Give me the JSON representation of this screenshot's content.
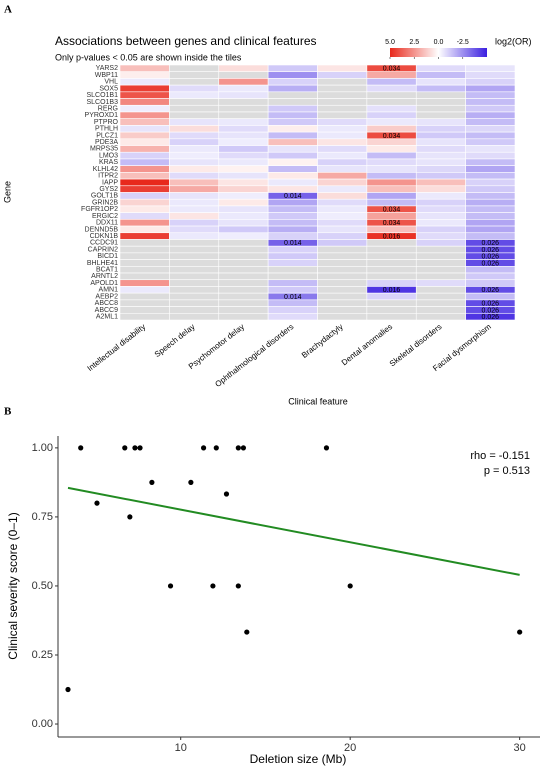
{
  "chart_data": [
    {
      "type": "heatmap",
      "panel": "A",
      "title": "Associations between genes and clinical features",
      "subtitle": "Only p-values < 0.05 are shown inside the tiles",
      "x_label": "Clinical feature",
      "y_label": "Gene",
      "features": [
        "Intellectual disability",
        "Speech delay",
        "Psychomotor delay",
        "Ophthalmological disorders",
        "Brachydactyly",
        "Dental anomalies",
        "Skeletal disorders",
        "Facial dysmorphism"
      ],
      "genes": [
        "YARS2",
        "WBP11",
        "VHL",
        "SOX5",
        "SLCO1B1",
        "SLCO1B3",
        "RERG",
        "PYROXD1",
        "PTPRO",
        "PTHLH",
        "PLCZ1",
        "PDE3A",
        "MRPS35",
        "LMO3",
        "KRAS",
        "KLHL42",
        "ITPR2",
        "IAPP",
        "GYS2",
        "GOLT1B",
        "GRIN2B",
        "FGFR1OP2",
        "ERGIC2",
        "DDX11",
        "DENND5B",
        "CDKN1B",
        "CCDC91",
        "CAPRIN2",
        "BICD1",
        "BHLHE41",
        "BCAT1",
        "ARNTL2",
        "APOLD1",
        "AMN1",
        "AEBP2",
        "ABCC8",
        "ABCC9",
        "A2ML1"
      ],
      "values": [
        [
          1.5,
          null,
          0.8,
          -1.2,
          0.6,
          4.2,
          -0.8,
          -0.6
        ],
        [
          0.4,
          null,
          null,
          -2.5,
          -1.0,
          2.0,
          -1.5,
          -0.8
        ],
        [
          -0.5,
          null,
          2.5,
          -1.0,
          null,
          -1.5,
          -0.6,
          -1.0
        ],
        [
          4.5,
          -0.8,
          -0.5,
          -1.8,
          null,
          -0.8,
          -1.5,
          -2.0
        ],
        [
          4.0,
          -0.5,
          -0.6,
          null,
          null,
          null,
          null,
          -1.5
        ],
        [
          2.8,
          null,
          null,
          null,
          null,
          null,
          null,
          -1.5
        ],
        [
          -0.4,
          null,
          null,
          -1.2,
          null,
          -0.7,
          null,
          -1.2
        ],
        [
          2.5,
          null,
          null,
          -1.5,
          null,
          -1.0,
          null,
          -1.8
        ],
        [
          1.5,
          -0.6,
          -0.5,
          -1.2,
          -0.8,
          -0.5,
          -0.6,
          -1.5
        ],
        [
          -0.6,
          0.8,
          -0.8,
          0.4,
          -0.5,
          1.2,
          -1.0,
          -0.9
        ],
        [
          1.2,
          -0.8,
          -0.6,
          -1.5,
          -0.5,
          4.2,
          -1.2,
          -1.5
        ],
        [
          0.5,
          -1.0,
          -0.4,
          1.5,
          0.6,
          1.0,
          -0.6,
          -1.2
        ],
        [
          1.8,
          -0.5,
          -1.2,
          -0.6,
          -0.8,
          0.5,
          -0.8,
          -0.6
        ],
        [
          -1.0,
          -0.4,
          -0.8,
          -1.2,
          -0.5,
          -1.5,
          -0.6,
          -0.8
        ],
        [
          -1.5,
          -0.6,
          -0.5,
          0.3,
          -1.0,
          -0.8,
          -0.6,
          -1.5
        ],
        [
          2.5,
          0.5,
          0.3,
          -1.5,
          -0.6,
          -0.6,
          -0.9,
          -2.0
        ],
        [
          1.5,
          -0.8,
          -0.6,
          0.5,
          2.0,
          -1.5,
          -1.2,
          -1.5
        ],
        [
          5.0,
          1.5,
          0.6,
          -0.5,
          1.0,
          2.5,
          1.5,
          -1.0
        ],
        [
          4.5,
          2.0,
          1.0,
          0.6,
          -0.5,
          1.5,
          0.8,
          -1.2
        ],
        [
          -1.0,
          -0.6,
          -0.4,
          -3.5,
          0.8,
          -2.0,
          -0.5,
          -1.5
        ],
        [
          1.0,
          -0.5,
          0.5,
          -2.0,
          -0.8,
          -1.5,
          -1.0,
          -1.8
        ],
        [
          0.5,
          -0.5,
          -0.6,
          -1.5,
          -0.5,
          4.0,
          -0.8,
          -1.5
        ],
        [
          -0.8,
          0.6,
          -0.5,
          -1.2,
          -0.4,
          2.2,
          -0.6,
          -1.5
        ],
        [
          2.5,
          -1.0,
          -0.6,
          -1.5,
          -0.8,
          4.0,
          -0.5,
          -2.0
        ],
        [
          0.5,
          -0.8,
          -1.2,
          -1.8,
          -0.6,
          1.5,
          -1.0,
          -2.0
        ],
        [
          4.5,
          -0.5,
          -0.4,
          -1.0,
          -1.0,
          4.8,
          -0.8,
          -1.5
        ],
        [
          null,
          null,
          null,
          -3.5,
          -1.2,
          null,
          -1.0,
          -4.0
        ],
        [
          null,
          null,
          null,
          -1.0,
          null,
          null,
          null,
          -4.0
        ],
        [
          null,
          null,
          null,
          -1.2,
          null,
          null,
          null,
          -4.0
        ],
        [
          null,
          null,
          null,
          -1.0,
          null,
          null,
          null,
          -4.0
        ],
        [
          null,
          null,
          null,
          null,
          null,
          null,
          null,
          -1.5
        ],
        [
          null,
          null,
          null,
          null,
          null,
          null,
          null,
          -1.2
        ],
        [
          2.5,
          null,
          null,
          -1.5,
          null,
          -1.0,
          -0.8,
          -1.2
        ],
        [
          -0.5,
          null,
          null,
          -1.2,
          null,
          -4.5,
          null,
          -4.0
        ],
        [
          null,
          null,
          null,
          -3.0,
          null,
          -1.0,
          null,
          -1.5
        ],
        [
          null,
          null,
          null,
          -1.5,
          null,
          null,
          null,
          -4.0
        ],
        [
          null,
          null,
          null,
          -1.0,
          null,
          null,
          null,
          -4.0
        ],
        [
          null,
          null,
          null,
          -0.8,
          null,
          null,
          null,
          -4.5
        ]
      ],
      "p_labels": [
        [
          null,
          null,
          null,
          null,
          null,
          "0.034",
          null,
          null
        ],
        [
          null,
          null,
          null,
          null,
          null,
          null,
          null,
          null
        ],
        [
          null,
          null,
          null,
          null,
          null,
          null,
          null,
          null
        ],
        [
          null,
          null,
          null,
          null,
          null,
          null,
          null,
          null
        ],
        [
          null,
          null,
          null,
          null,
          null,
          null,
          null,
          null
        ],
        [
          null,
          null,
          null,
          null,
          null,
          null,
          null,
          null
        ],
        [
          null,
          null,
          null,
          null,
          null,
          null,
          null,
          null
        ],
        [
          null,
          null,
          null,
          null,
          null,
          null,
          null,
          null
        ],
        [
          null,
          null,
          null,
          null,
          null,
          null,
          null,
          null
        ],
        [
          null,
          null,
          null,
          null,
          null,
          null,
          null,
          null
        ],
        [
          null,
          null,
          null,
          null,
          null,
          "0.034",
          null,
          null
        ],
        [
          null,
          null,
          null,
          null,
          null,
          null,
          null,
          null
        ],
        [
          null,
          null,
          null,
          null,
          null,
          null,
          null,
          null
        ],
        [
          null,
          null,
          null,
          null,
          null,
          null,
          null,
          null
        ],
        [
          null,
          null,
          null,
          null,
          null,
          null,
          null,
          null
        ],
        [
          null,
          null,
          null,
          null,
          null,
          null,
          null,
          null
        ],
        [
          null,
          null,
          null,
          null,
          null,
          null,
          null,
          null
        ],
        [
          null,
          null,
          null,
          null,
          null,
          null,
          null,
          null
        ],
        [
          null,
          null,
          null,
          null,
          null,
          null,
          null,
          null
        ],
        [
          null,
          null,
          null,
          "0.014",
          null,
          null,
          null,
          null
        ],
        [
          null,
          null,
          null,
          null,
          null,
          null,
          null,
          null
        ],
        [
          null,
          null,
          null,
          null,
          null,
          "0.034",
          null,
          null
        ],
        [
          null,
          null,
          null,
          null,
          null,
          null,
          null,
          null
        ],
        [
          null,
          null,
          null,
          null,
          null,
          "0.034",
          null,
          null
        ],
        [
          null,
          null,
          null,
          null,
          null,
          null,
          null,
          null
        ],
        [
          null,
          null,
          null,
          null,
          null,
          "0.016",
          null,
          null
        ],
        [
          null,
          null,
          null,
          "0.014",
          null,
          null,
          null,
          "0.026"
        ],
        [
          null,
          null,
          null,
          null,
          null,
          null,
          null,
          "0.026"
        ],
        [
          null,
          null,
          null,
          null,
          null,
          null,
          null,
          "0.026"
        ],
        [
          null,
          null,
          null,
          null,
          null,
          null,
          null,
          "0.026"
        ],
        [
          null,
          null,
          null,
          null,
          null,
          null,
          null,
          null
        ],
        [
          null,
          null,
          null,
          null,
          null,
          null,
          null,
          null
        ],
        [
          null,
          null,
          null,
          null,
          null,
          null,
          null,
          null
        ],
        [
          null,
          null,
          null,
          null,
          null,
          "0.016",
          null,
          "0.026"
        ],
        [
          null,
          null,
          null,
          "0.014",
          null,
          null,
          null,
          null
        ],
        [
          null,
          null,
          null,
          null,
          null,
          null,
          null,
          "0.026"
        ],
        [
          null,
          null,
          null,
          null,
          null,
          null,
          null,
          "0.026"
        ],
        [
          null,
          null,
          null,
          null,
          null,
          null,
          null,
          "0.026"
        ]
      ],
      "colors": {
        "high": "#e8291c",
        "mid": "#ffffff",
        "low": "#3b1fe0",
        "na": "#dcdcdc"
      },
      "colorbar": {
        "title": "log2(OR)",
        "lim": [
          -5,
          5
        ],
        "ticks": [
          {
            "value": 5,
            "label": "5.0"
          },
          2.5,
          {
            "value": 0,
            "label": "0.0"
          },
          -2.5
        ]
      }
    },
    {
      "type": "scatter",
      "panel": "B",
      "x_label": "Deletion size (Mb)",
      "y_label": "Clinical severity score (0–1)",
      "x": [
        3.35,
        4.1,
        5.06,
        6.7,
        7.0,
        7.3,
        7.6,
        8.3,
        9.4,
        10.6,
        11.35,
        11.9,
        12.1,
        12.7,
        13.4,
        13.7,
        13.4,
        13.9,
        18.6,
        20.0,
        30.0
      ],
      "values": [
        0.125,
        1.0,
        0.8,
        1.0,
        0.75,
        1.0,
        1.0,
        0.875,
        0.5,
        0.875,
        1.0,
        0.5,
        1.0,
        0.833,
        1.0,
        1.0,
        0.5,
        0.333,
        1.0,
        0.5,
        0.333
      ],
      "color": "#000000",
      "trend": {
        "x": [
          3.35,
          30
        ],
        "y": [
          0.855,
          0.54
        ],
        "color": "#228b22"
      },
      "annotations": [
        "rho = -0.151",
        "p = 0.513"
      ],
      "xlim": [
        2.76,
        31.2
      ],
      "xticks": [
        10,
        20,
        30
      ],
      "ylim": [
        -0.047,
        1.043
      ],
      "yticks": [
        {
          "value": 0,
          "label": "0.00"
        },
        {
          "value": 0.25,
          "label": "0.25"
        },
        {
          "value": 0.5,
          "label": "0.50"
        },
        {
          "value": 0.75,
          "label": "0.75"
        },
        {
          "value": 1,
          "label": "1.00"
        }
      ]
    }
  ]
}
